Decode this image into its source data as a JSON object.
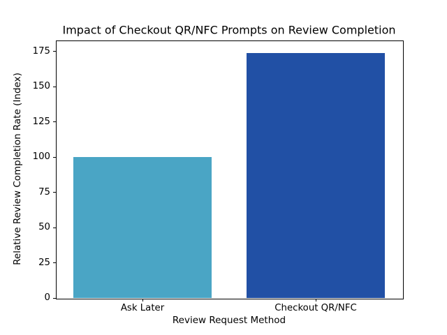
{
  "chart_data": {
    "type": "bar",
    "title": "Impact of Checkout QR/NFC Prompts on Review Completion",
    "xlabel": "Review Request Method",
    "ylabel": "Relative Review Completion Rate (Index)",
    "categories": [
      "Ask Later",
      "Checkout QR/NFC"
    ],
    "values": [
      100,
      174
    ],
    "bar_colors": [
      "#4aa5c5",
      "#2150a5"
    ],
    "yticks": [
      0,
      25,
      50,
      75,
      100,
      125,
      150,
      175
    ],
    "ylim": [
      0,
      182.7
    ],
    "bar_width_fraction": 0.8,
    "grid": false,
    "legend": "none",
    "background_color": "#ffffff",
    "spine_color": "#000000"
  }
}
